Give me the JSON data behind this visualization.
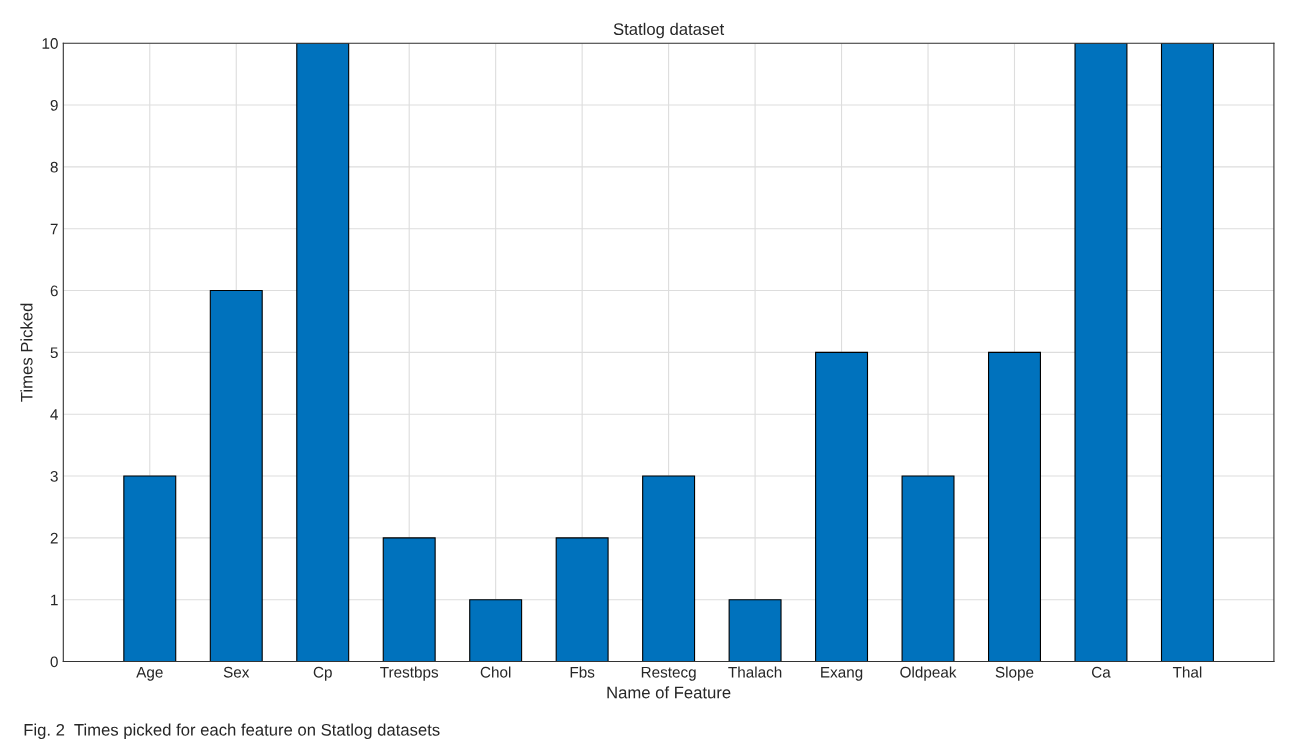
{
  "chart_data": {
    "type": "bar",
    "title": "Statlog dataset",
    "xlabel": "Name of Feature",
    "ylabel": "Times Picked",
    "categories": [
      "Age",
      "Sex",
      "Cp",
      "Trestbps",
      "Chol",
      "Fbs",
      "Restecg",
      "Thalach",
      "Exang",
      "Oldpeak",
      "Slope",
      "Ca",
      "Thal"
    ],
    "values": [
      3,
      6,
      10,
      2,
      1,
      2,
      3,
      1,
      5,
      3,
      5,
      10,
      10
    ],
    "color": "#0072bd",
    "ylim": [
      0,
      10
    ],
    "yticks": [
      0,
      1,
      2,
      3,
      4,
      5,
      6,
      7,
      8,
      9,
      10
    ],
    "grid": true,
    "annotations": [
      "Fig. 2  Times picked for each feature on Statlog datasets"
    ]
  }
}
